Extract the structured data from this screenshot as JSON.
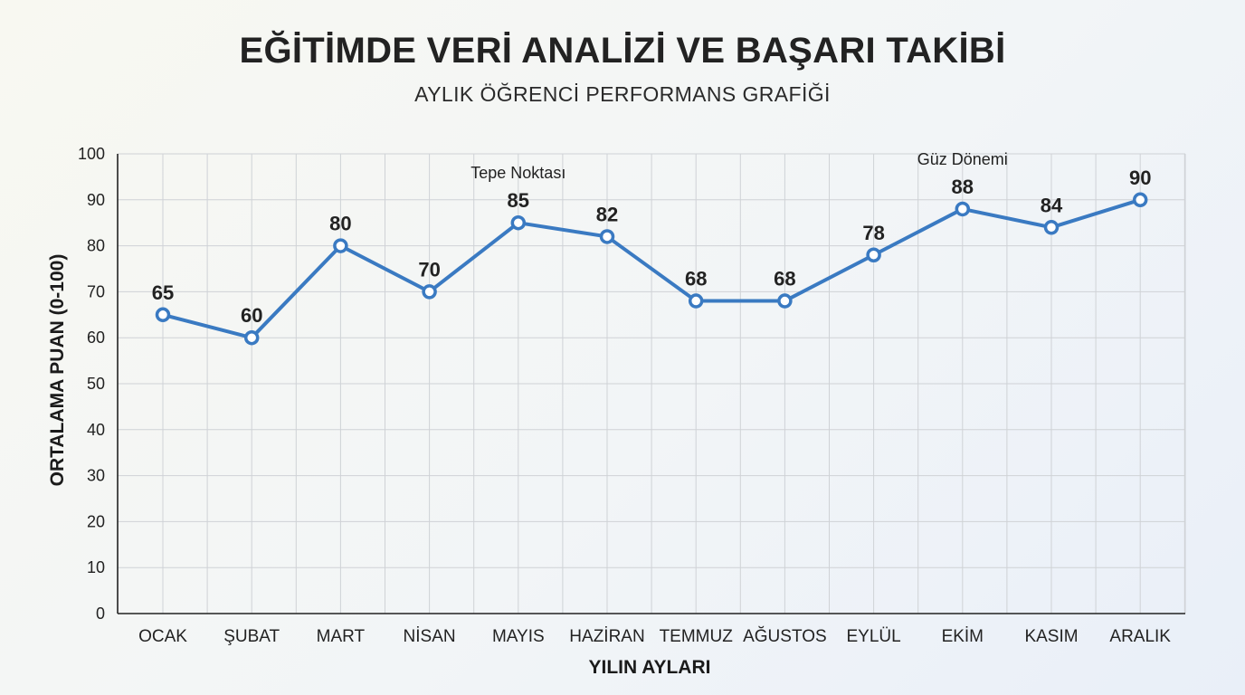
{
  "chart_data": {
    "type": "line",
    "title": "EĞİTİMDE VERİ ANALİZİ VE BAŞARI TAKİBİ",
    "subtitle": "AYLIK ÖĞRENCİ PERFORMANS GRAFİĞİ",
    "xlabel": "YILIN AYLARI",
    "ylabel": "ORTALAMA PUAN (0-100)",
    "categories": [
      "OCAK",
      "ŞUBAT",
      "MART",
      "NİSAN",
      "MAYIS",
      "HAZİRAN",
      "TEMMUZ",
      "AĞUSTOS",
      "EYLÜL",
      "EKİM",
      "KASIM",
      "ARALIK"
    ],
    "series": [
      {
        "values": [
          65,
          60,
          80,
          70,
          85,
          82,
          68,
          68,
          78,
          88,
          84,
          90
        ]
      }
    ],
    "data_labels": [
      "65",
      "60",
      "80",
      "70",
      "85",
      "82",
      "68",
      "68",
      "78",
      "88",
      "84",
      "90"
    ],
    "ylim": [
      0,
      100
    ],
    "yticks": [
      0,
      10,
      20,
      30,
      40,
      50,
      60,
      70,
      80,
      90,
      100
    ],
    "grid": true,
    "annotations": [
      {
        "text": "Tepe Noktası",
        "category": "MAYIS"
      },
      {
        "text": "Güz Dönemi",
        "category": "EKİM"
      }
    ],
    "colors": {
      "line": "#3a7ac2",
      "marker_fill": "#ffffff",
      "grid": "#cfd2d6"
    }
  }
}
